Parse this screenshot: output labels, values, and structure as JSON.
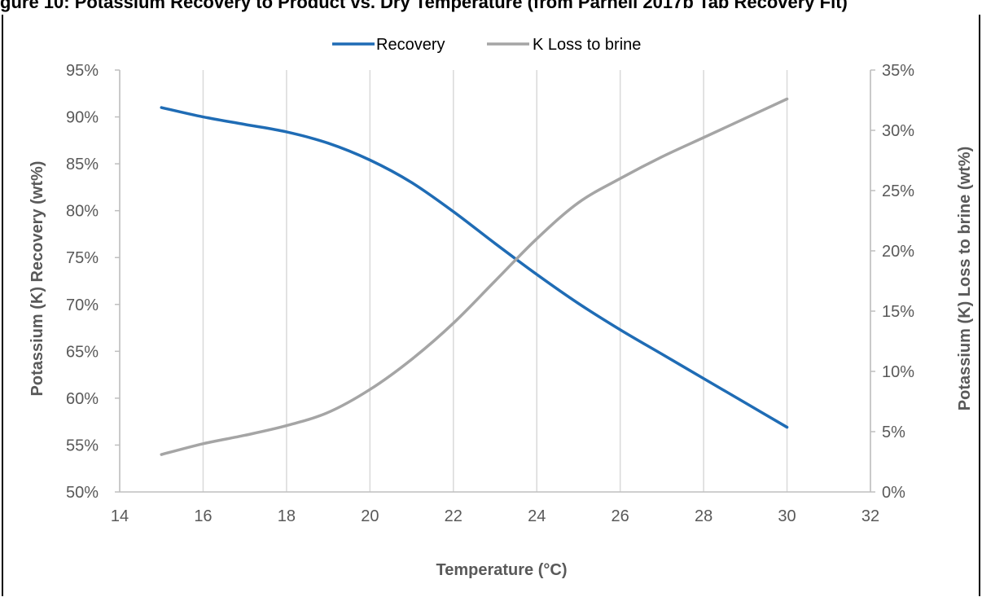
{
  "caption": "gure 10: Potassium Recovery to Product vs. Dry Temperature (from Parnell 2017b Tab Recovery Fit)",
  "chart_data": {
    "type": "line",
    "title": "",
    "xlabel": "Temperature (°C)",
    "ylabel": "Potassium (K) Recovery (wt%)",
    "y2label": "Potassium (K) Loss to brine (wt%)",
    "xlim": [
      14,
      32
    ],
    "ylim": [
      0.5,
      0.95
    ],
    "y2lim": [
      0,
      0.35
    ],
    "x_ticks": [
      "14",
      "16",
      "18",
      "20",
      "22",
      "24",
      "26",
      "28",
      "30",
      "32"
    ],
    "y_ticks": [
      "50%",
      "55%",
      "60%",
      "65%",
      "70%",
      "75%",
      "80%",
      "85%",
      "90%",
      "95%"
    ],
    "y2_ticks": [
      "0%",
      "5%",
      "10%",
      "15%",
      "20%",
      "25%",
      "30%",
      "35%"
    ],
    "grid": "vertical",
    "legend": "top",
    "series": [
      {
        "name": "Recovery",
        "axis": "left",
        "color": "#1F6CB5",
        "x": [
          15,
          16,
          17,
          18,
          19,
          20,
          21,
          22,
          23,
          24,
          25,
          26,
          27,
          28,
          29,
          30
        ],
        "y": [
          0.91,
          0.9,
          0.892,
          0.884,
          0.872,
          0.854,
          0.83,
          0.799,
          0.765,
          0.732,
          0.701,
          0.673,
          0.647,
          0.621,
          0.595,
          0.569
        ]
      },
      {
        "name": "K Loss to brine",
        "axis": "right",
        "color": "#A5A5A5",
        "x": [
          15,
          16,
          17,
          18,
          19,
          20,
          21,
          22,
          23,
          24,
          25,
          26,
          27,
          28,
          29,
          30
        ],
        "y": [
          0.031,
          0.04,
          0.047,
          0.055,
          0.066,
          0.085,
          0.11,
          0.14,
          0.175,
          0.21,
          0.24,
          0.26,
          0.278,
          0.294,
          0.31,
          0.326
        ]
      }
    ]
  }
}
